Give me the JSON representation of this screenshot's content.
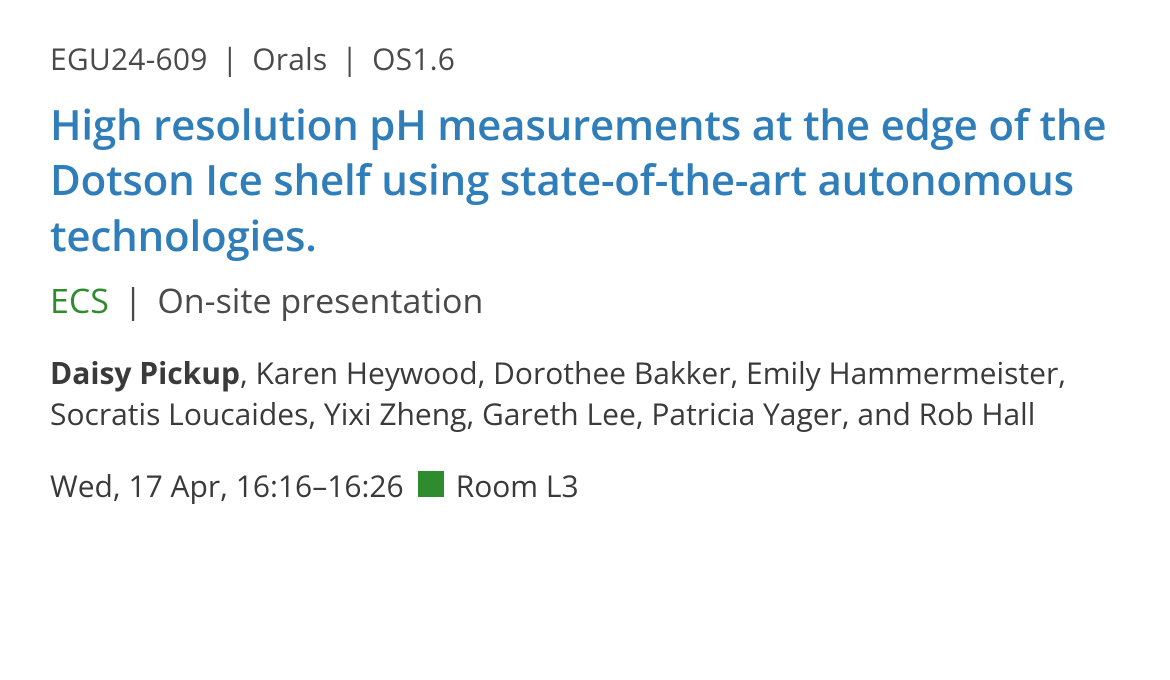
{
  "meta": {
    "abstract_id": "EGU24-609",
    "format": "Orals",
    "session": "OS1.6",
    "separator": "|"
  },
  "title": "High resolution pH measurements at the edge of the Dotson Ice shelf using state-of-the-art autonomous technologies.",
  "tags": {
    "ecs_label": "ECS",
    "mode": "On-site presentation",
    "ecs_color": "#2e8b2e",
    "separator": "|"
  },
  "authors": {
    "lead": "Daisy Pickup",
    "rest": ", Karen Heywood, Dorothee Bakker, Emily Hammermeister, Socratis Loucaides, Yixi Zheng, Gareth Lee, Patricia Yager, and Rob Hall"
  },
  "schedule": {
    "datetime": "Wed, 17 Apr, 16:16–16:26",
    "room": "Room L3",
    "marker_color": "#2e8b2e"
  },
  "style": {
    "background_color": "#ffffff",
    "text_color": "#3a3a3a",
    "title_color": "#2f7db9",
    "meta_fontsize": 30,
    "title_fontsize": 42,
    "tagline_fontsize": 34,
    "authors_fontsize": 30,
    "schedule_fontsize": 30
  }
}
